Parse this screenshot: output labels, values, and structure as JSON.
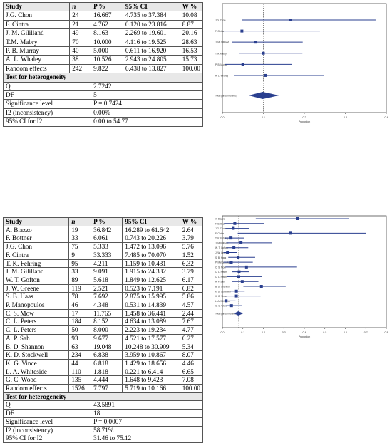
{
  "colors": {
    "marker": "#2a3f8f",
    "header_bg": "#e8e8e8",
    "grid": "#555555"
  },
  "table1": {
    "headers": [
      "Study",
      "n",
      "P %",
      "95% CI",
      "W %"
    ],
    "rows": [
      [
        "J.G. Chon",
        "24",
        "16.667",
        "4.735 to 37.384",
        "10.08"
      ],
      [
        "F. Cintra",
        "21",
        "4.762",
        "0.120 to 23.816",
        "8.87"
      ],
      [
        "J. M. Gililland",
        "49",
        "8.163",
        "2.269 to 19.601",
        "20.16"
      ],
      [
        "T.M. Mabry",
        "70",
        "10.000",
        "4.116 to 19.525",
        "28.63"
      ],
      [
        "P. B. Murray",
        "40",
        "5.000",
        "0.611 to 16.920",
        "16.53"
      ],
      [
        "A. L. Whaley",
        "38",
        "10.526",
        "2.943 to 24.805",
        "15.73"
      ],
      [
        "Random effects",
        "242",
        "9.822",
        "6.438 to 13.827",
        "100.00"
      ]
    ],
    "heterogeneity_title": "Test for heterogeneity",
    "heterogeneity": [
      [
        "Q",
        "2.7242"
      ],
      [
        "DF",
        "5"
      ],
      [
        "Significance level",
        "P = 0.7424"
      ],
      [
        "I2 (inconsistency)",
        "0.00%"
      ],
      [
        "95% CI for I2",
        "0.00 to 54.77"
      ]
    ]
  },
  "table2": {
    "headers": [
      "Study",
      "n",
      "P %",
      "95% CI",
      "W %"
    ],
    "rows": [
      [
        "A. Biazzo",
        "19",
        "36.842",
        "16.289 to 61.642",
        "2.64"
      ],
      [
        "F. Bottner",
        "33",
        "6.061",
        "0.743 to 20.226",
        "3.79"
      ],
      [
        "J.G. Chon",
        "75",
        "5.333",
        "1.472 to 13.096",
        "5.76"
      ],
      [
        "F. Cintra",
        "9",
        "33.333",
        "7.485 to 70.070",
        "1.52"
      ],
      [
        "T. K. Fehring",
        "95",
        "4.211",
        "1.159 to 10.431",
        "6.32"
      ],
      [
        "J. M. Gililland",
        "33",
        "9.091",
        "1.915 to 24.332",
        "3.79"
      ],
      [
        "W. T. Gofton",
        "89",
        "5.618",
        "1.849 to 12.625",
        "6.17"
      ],
      [
        "J. W. Greene",
        "119",
        "2.521",
        "0.523 to 7.191",
        "6.82"
      ],
      [
        "S. B. Haas",
        "78",
        "7.692",
        "2.875 to 15.995",
        "5.86"
      ],
      [
        "P. Manopoulos",
        "46",
        "4.348",
        "0.531 to 14.839",
        "4.57"
      ],
      [
        "C. S. Mow",
        "17",
        "11.765",
        "1.458 to 36.441",
        "2.44"
      ],
      [
        "C. L. Peters",
        "184",
        "8.152",
        "4.634 to 13.089",
        "7.67"
      ],
      [
        "C. L. Peters",
        "50",
        "8.000",
        "2.223 to 19.234",
        "4.77"
      ],
      [
        "A. P. Sah",
        "93",
        "9.677",
        "4.521 to 17.577",
        "6.27"
      ],
      [
        "B. D. Shannon",
        "63",
        "19.048",
        "10.248 to 30.909",
        "5.34"
      ],
      [
        "K. D. Stockwell",
        "234",
        "6.838",
        "3.959 to 10.867",
        "8.07"
      ],
      [
        "K. G. Vince",
        "44",
        "6.818",
        "1.429 to 18.656",
        "4.46"
      ],
      [
        "L. A. Whiteside",
        "110",
        "1.818",
        "0.221 to 6.414",
        "6.65"
      ],
      [
        "G. C. Wood",
        "135",
        "4.444",
        "1.648 to 9.423",
        "7.08"
      ],
      [
        "Random effects",
        "1526",
        "7.797",
        "5.719 to 10.166",
        "100.00"
      ]
    ],
    "heterogeneity_title": "Test for heterogeneity",
    "heterogeneity": [
      [
        "Q",
        "43.5891"
      ],
      [
        "DF",
        "18"
      ],
      [
        "Significance level",
        "P = 0.0007"
      ],
      [
        "I2 (inconsistency)",
        "58.71%"
      ],
      [
        "95% CI for I2",
        "31.46 to 75.12"
      ]
    ]
  },
  "chart_data": [
    {
      "type": "scatter",
      "title": "",
      "xlabel": "Proportion",
      "ylabel": "",
      "xlim": [
        0,
        0.4
      ],
      "xticks": [
        "0.0",
        "0.1",
        "0.2",
        "0.3",
        "0.4"
      ],
      "reference_line": 0.1,
      "studies": [
        "J.G. Chon",
        "F. Cintra",
        "J. M. Gilliland",
        "T.M. Mabry",
        "P. B. Murray",
        "A. L. Whaley"
      ],
      "est": [
        0.16667,
        0.04762,
        0.08163,
        0.1,
        0.05,
        0.10526
      ],
      "lower": [
        0.04735,
        0.0012,
        0.02269,
        0.04116,
        0.00611,
        0.02943
      ],
      "upper": [
        0.37384,
        0.23816,
        0.19601,
        0.19525,
        0.1692,
        0.24805
      ],
      "pooled_label": "Total (random effects)",
      "pooled": {
        "est": 0.09822,
        "lower": 0.06438,
        "upper": 0.13827
      }
    },
    {
      "type": "scatter",
      "title": "",
      "xlabel": "Proportion",
      "ylabel": "",
      "xlim": [
        0,
        0.8
      ],
      "xticks": [
        "0.0",
        "0.1",
        "0.2",
        "0.3",
        "0.4",
        "0.5",
        "0.6",
        "0.7",
        "0.8"
      ],
      "reference_line": 0.08,
      "studies": [
        "A. Biazzo",
        "F. Bottner",
        "J.G. Chon",
        "F. Cintra",
        "T. K. Fehring",
        "J. M Gililland",
        "W. T. Gofton",
        "J. W. Greene",
        "S. B. Haas",
        "P. Manopoulos",
        "C. S. Mow",
        "C. L. Peters",
        "C. L. Peters",
        "A. P. Sah",
        "B. D. Shannon",
        "K. D. Stockwell",
        "K. G. Vince",
        "L. A. Whiteside",
        "G. C. Wood"
      ],
      "est": [
        0.36842,
        0.06061,
        0.05333,
        0.33333,
        0.04211,
        0.09091,
        0.05618,
        0.02521,
        0.07692,
        0.04348,
        0.11765,
        0.08152,
        0.08,
        0.09677,
        0.19048,
        0.06838,
        0.06818,
        0.01818,
        0.04444
      ],
      "lower": [
        0.16289,
        0.00743,
        0.01472,
        0.07485,
        0.01159,
        0.01915,
        0.01849,
        0.00523,
        0.02875,
        0.00531,
        0.01458,
        0.04634,
        0.02223,
        0.04521,
        0.10248,
        0.03959,
        0.01429,
        0.00221,
        0.01648
      ],
      "upper": [
        0.61642,
        0.20226,
        0.13096,
        0.7007,
        0.10431,
        0.24332,
        0.12625,
        0.07191,
        0.15995,
        0.14839,
        0.36441,
        0.13089,
        0.19234,
        0.17577,
        0.30909,
        0.10867,
        0.18656,
        0.06414,
        0.09423
      ],
      "pooled_label": "Total (random effects)",
      "pooled": {
        "est": 0.07797,
        "lower": 0.05719,
        "upper": 0.10166
      }
    }
  ]
}
